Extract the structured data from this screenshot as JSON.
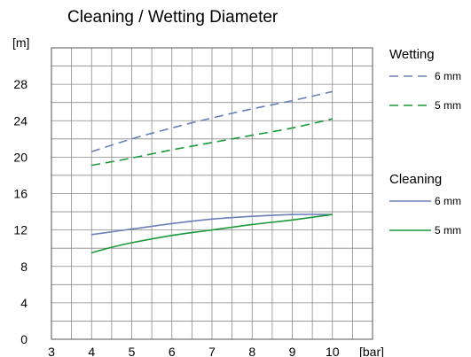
{
  "chart_data": {
    "type": "line",
    "title": "Cleaning / Wetting Diameter",
    "ylabel": "[m]",
    "xlabel": "[bar]",
    "xlim": [
      3,
      11
    ],
    "ylim": [
      0,
      32
    ],
    "x_ticks": [
      3,
      4,
      5,
      6,
      7,
      8,
      9,
      10
    ],
    "y_ticks": [
      0,
      4,
      8,
      12,
      16,
      20,
      24,
      28
    ],
    "grid": true,
    "legend_position": "right",
    "legend_groups": [
      {
        "title": "Wetting",
        "items": [
          0,
          1
        ]
      },
      {
        "title": "Cleaning",
        "items": [
          2,
          3
        ]
      }
    ],
    "series": [
      {
        "name": "6 mm",
        "group": "Wetting",
        "style": "dashed",
        "color": "#6a7fb8",
        "x": [
          4,
          5,
          6,
          7,
          8,
          9,
          10
        ],
        "y": [
          20.6,
          22.0,
          23.2,
          24.3,
          25.3,
          26.2,
          27.2
        ]
      },
      {
        "name": "5 mm",
        "group": "Wetting",
        "style": "dashed",
        "color": "#1a9a3a",
        "x": [
          4,
          5,
          6,
          7,
          8,
          9,
          10
        ],
        "y": [
          19.1,
          19.9,
          20.8,
          21.6,
          22.4,
          23.2,
          24.2
        ]
      },
      {
        "name": "6 mm",
        "group": "Cleaning",
        "style": "solid",
        "color": "#6a7fb8",
        "x": [
          4,
          5,
          6,
          7,
          8,
          9,
          10
        ],
        "y": [
          11.5,
          12.1,
          12.7,
          13.2,
          13.5,
          13.7,
          13.7
        ]
      },
      {
        "name": "5 mm",
        "group": "Cleaning",
        "style": "solid",
        "color": "#1a9a3a",
        "x": [
          4,
          4.5,
          5,
          6,
          7,
          8,
          9,
          10
        ],
        "y": [
          9.5,
          10.1,
          10.6,
          11.4,
          12.0,
          12.6,
          13.1,
          13.7
        ]
      }
    ]
  }
}
